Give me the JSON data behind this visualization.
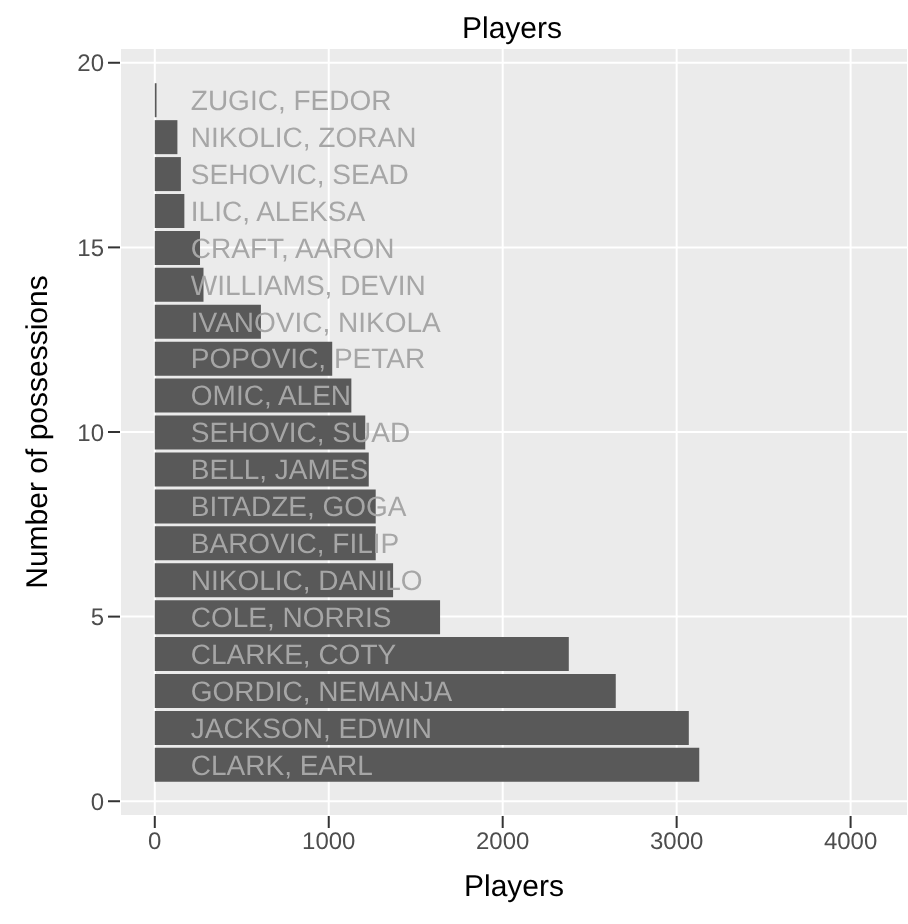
{
  "chart_data": {
    "type": "bar",
    "orientation": "horizontal",
    "title": "Players",
    "xlabel": "Players",
    "ylabel": "Number of possessions",
    "x": [
      19,
      18,
      17,
      16,
      15,
      14,
      13,
      12,
      11,
      10,
      9,
      8,
      7,
      6,
      5,
      4,
      3,
      2,
      1
    ],
    "values": [
      10,
      130,
      150,
      170,
      260,
      280,
      610,
      1020,
      1130,
      1210,
      1230,
      1270,
      1270,
      1370,
      1640,
      2380,
      2650,
      3070,
      3130
    ],
    "color": "#595959",
    "annotations": [
      "ZUGIC, FEDOR",
      "NIKOLIC, ZORAN",
      "SEHOVIC, SEAD",
      "ILIC, ALEKSA",
      "CRAFT, AARON",
      "WILLIAMS, DEVIN",
      "IVANOVIC, NIKOLA",
      "POPOVIC, PETAR",
      "OMIC, ALEN",
      "SEHOVIC, SUAD",
      "BELL, JAMES",
      "BITADZE, GOGA",
      "BAROVIC, FILIP",
      "NIKOLIC, DANILO",
      "COLE, NORRIS",
      "CLARKE, COTY",
      "GORDIC, NEMANJA",
      "JACKSON, EDWIN",
      "CLARK, EARL"
    ],
    "xlim": [
      -200,
      4330
    ],
    "xticks": [
      0,
      1000,
      2000,
      3000,
      4000
    ],
    "ylim": [
      -0.4,
      20.4
    ],
    "yticks": [
      0,
      5,
      10,
      15,
      20
    ],
    "grid": true
  }
}
